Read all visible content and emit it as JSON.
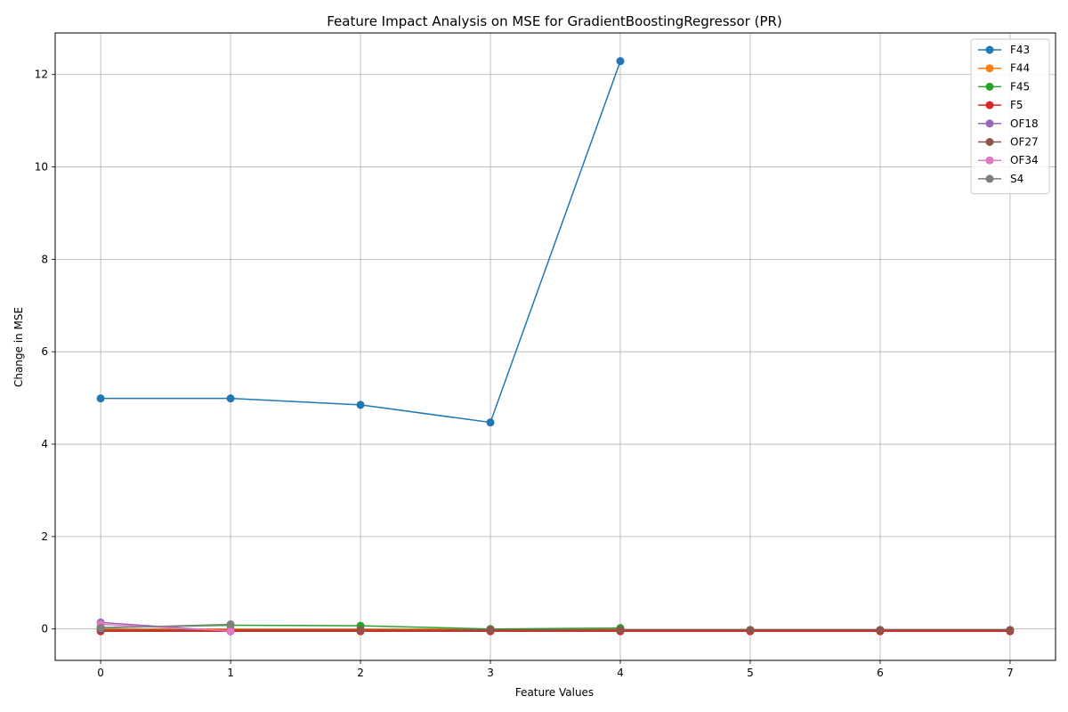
{
  "chart_data": {
    "type": "line",
    "title": "Feature Impact Analysis on MSE for GradientBoostingRegressor (PR)",
    "xlabel": "Feature Values",
    "ylabel": "Change in MSE",
    "xlim": [
      -0.35,
      7.35
    ],
    "ylim": [
      -0.68,
      12.9
    ],
    "xticks": [
      0,
      1,
      2,
      3,
      4,
      5,
      6,
      7
    ],
    "yticks": [
      0,
      2,
      4,
      6,
      8,
      10,
      12
    ],
    "grid": true,
    "legend_position": "top-right",
    "series": [
      {
        "name": "F43",
        "color": "#1f77b4",
        "x": [
          0,
          1,
          2,
          3,
          4
        ],
        "values": [
          4.99,
          4.99,
          4.85,
          4.47,
          12.29
        ]
      },
      {
        "name": "F44",
        "color": "#ff7f0e",
        "x": [
          0,
          1,
          2,
          3,
          4
        ],
        "values": [
          0.0,
          0.0,
          0.0,
          0.0,
          0.0
        ]
      },
      {
        "name": "F45",
        "color": "#2ca02c",
        "x": [
          0,
          1,
          2,
          3,
          4
        ],
        "values": [
          0.03,
          0.08,
          0.07,
          0.0,
          0.02
        ]
      },
      {
        "name": "F5",
        "color": "#d62728",
        "x": [
          0,
          1,
          2,
          3,
          4,
          5,
          6,
          7
        ],
        "values": [
          -0.05,
          -0.05,
          -0.05,
          -0.05,
          -0.05,
          -0.05,
          -0.05,
          -0.05
        ]
      },
      {
        "name": "OF18",
        "color": "#9467bd",
        "x": [
          0,
          1
        ],
        "values": [
          0.14,
          -0.05
        ]
      },
      {
        "name": "OF27",
        "color": "#8c564b",
        "x": [
          0,
          1,
          2,
          3,
          4,
          5,
          6,
          7
        ],
        "values": [
          -0.02,
          -0.02,
          -0.02,
          -0.02,
          -0.02,
          -0.02,
          -0.02,
          -0.02
        ]
      },
      {
        "name": "OF34",
        "color": "#e377c2",
        "x": [
          0,
          1
        ],
        "values": [
          0.1,
          -0.04
        ]
      },
      {
        "name": "S4",
        "color": "#7f7f7f",
        "x": [
          0,
          1
        ],
        "values": [
          0.02,
          0.1
        ]
      }
    ]
  }
}
